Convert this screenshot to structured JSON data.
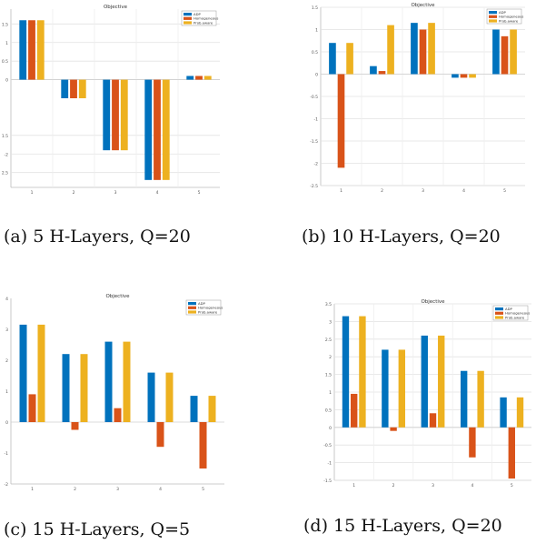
{
  "colors": {
    "s1": "#0072BD",
    "s2": "#D95319",
    "s3": "#EDB120"
  },
  "chart_data": [
    {
      "type": "bar",
      "title": "Objective",
      "caption": "(a) 5 H-Layers, Q=20",
      "categories": [
        "1",
        "2",
        "3",
        "4",
        "5"
      ],
      "series": [
        {
          "name": "ADP",
          "values": [
            1.6,
            -0.5,
            -1.9,
            -2.7,
            0.1
          ]
        },
        {
          "name": "Homogeneous",
          "values": [
            1.6,
            -0.5,
            -1.9,
            -2.7,
            0.1
          ]
        },
        {
          "name": "Prob.aware",
          "values": [
            1.6,
            -0.5,
            -1.9,
            -2.7,
            0.1
          ]
        }
      ],
      "ylim": [
        -2.9,
        1.9
      ],
      "yticks": [
        1.5,
        1,
        0.5,
        0,
        -1.5,
        -2,
        -2.5
      ],
      "ytick_labels": [
        "1.5",
        "1",
        "0.5",
        "0",
        "-1.5",
        "-2",
        "-2.5"
      ],
      "legend_position": "top-right",
      "grid": true
    },
    {
      "type": "bar",
      "title": "Objective",
      "caption": "(b) 10 H-Layers, Q=20",
      "categories": [
        "1",
        "2",
        "3",
        "4",
        "5"
      ],
      "series": [
        {
          "name": "ADP",
          "values": [
            0.7,
            0.18,
            1.15,
            -0.08,
            1.0
          ]
        },
        {
          "name": "Homogeneous",
          "values": [
            -2.1,
            0.07,
            1.0,
            -0.08,
            0.85
          ]
        },
        {
          "name": "Prob.aware",
          "values": [
            0.7,
            1.1,
            1.15,
            -0.08,
            1.0
          ]
        }
      ],
      "ylim": [
        -2.5,
        1.5
      ],
      "yticks": [
        1.5,
        1,
        0.5,
        0,
        -0.5,
        -1,
        -1.5,
        -2,
        -2.5
      ],
      "ytick_labels": [
        "1.5",
        "1",
        "0.5",
        "0",
        "-0.5",
        "-1",
        "-1.5",
        "-2",
        "-2.5"
      ],
      "legend_position": "top-right",
      "grid": true
    },
    {
      "type": "bar",
      "title": "Objective",
      "caption": "(c) 15 H-Layers, Q=5",
      "categories": [
        "1",
        "2",
        "3",
        "4",
        "5"
      ],
      "series": [
        {
          "name": "ADP",
          "values": [
            3.15,
            2.2,
            2.6,
            1.6,
            0.85
          ]
        },
        {
          "name": "Homogeneous",
          "values": [
            0.9,
            -0.25,
            0.45,
            -0.8,
            -1.5
          ]
        },
        {
          "name": "Prob.aware",
          "values": [
            3.15,
            2.2,
            2.6,
            1.6,
            0.85
          ]
        }
      ],
      "ylim": [
        -2,
        4
      ],
      "yticks": [
        4,
        3,
        2,
        1,
        0,
        -1,
        -2
      ],
      "ytick_labels": [
        "4",
        "3",
        "2",
        "1",
        "0",
        "-1",
        "-2"
      ],
      "legend_position": "top-right",
      "grid": false
    },
    {
      "type": "bar",
      "title": "Objective",
      "caption": "(d) 15 H-Layers, Q=20",
      "categories": [
        "1",
        "2",
        "3",
        "4",
        "5"
      ],
      "series": [
        {
          "name": "ADP",
          "values": [
            3.15,
            2.2,
            2.6,
            1.6,
            0.85
          ]
        },
        {
          "name": "Homogeneous",
          "values": [
            0.95,
            -0.1,
            0.4,
            -0.85,
            -1.45
          ]
        },
        {
          "name": "Prob.aware",
          "values": [
            3.15,
            2.2,
            2.6,
            1.6,
            0.85
          ]
        }
      ],
      "ylim": [
        -1.5,
        3.5
      ],
      "yticks": [
        3.5,
        3,
        2.5,
        2,
        1.5,
        1,
        0.5,
        0,
        -0.5,
        -1,
        -1.5
      ],
      "ytick_labels": [
        "3.5",
        "3",
        "2.5",
        "2",
        "1.5",
        "1",
        "0.5",
        "0",
        "-0.5",
        "-1",
        "-1.5"
      ],
      "legend_position": "top-right",
      "grid": true
    }
  ]
}
